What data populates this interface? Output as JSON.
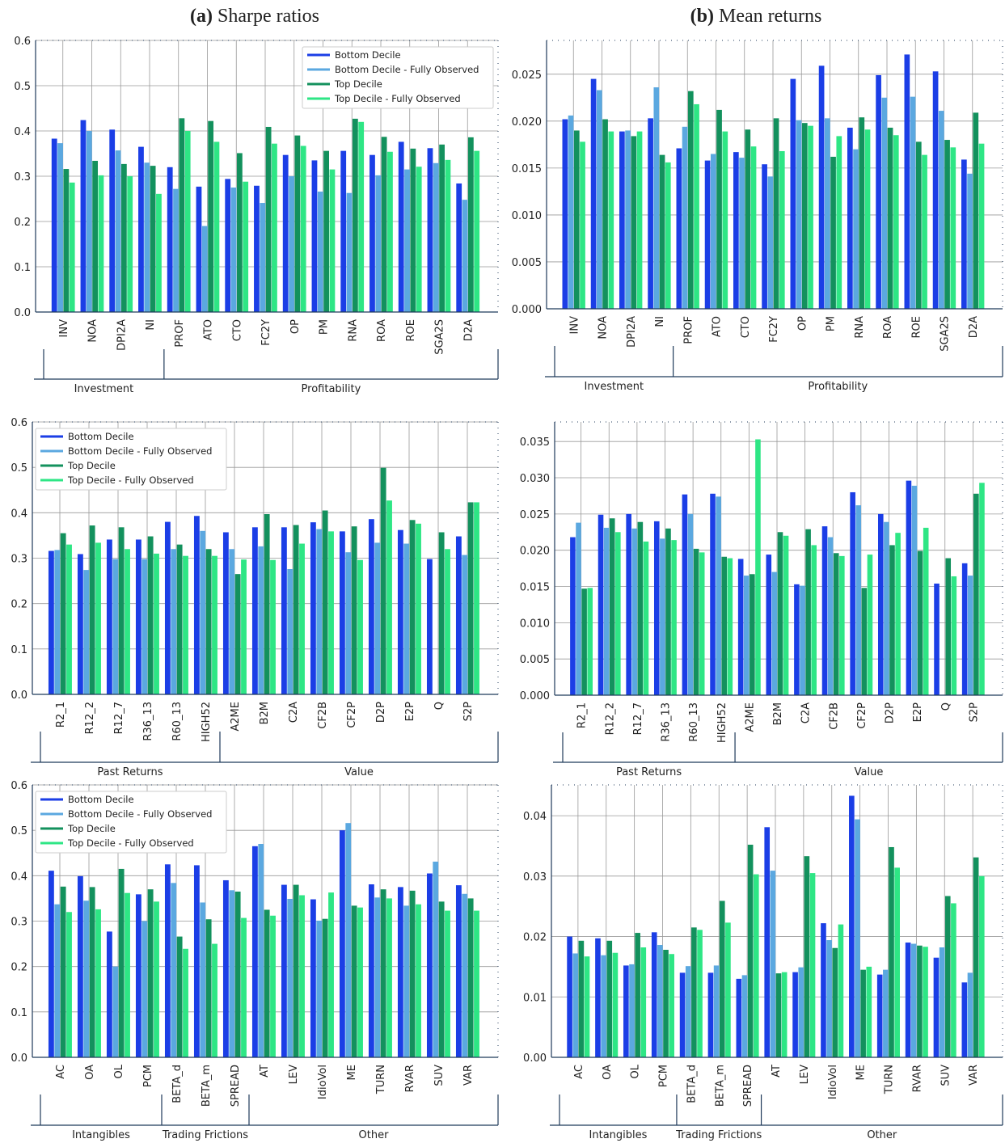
{
  "column_titles": [
    {
      "label": "(a)",
      "text": "Sharpe ratios"
    },
    {
      "label": "(b)",
      "text": "Mean returns"
    }
  ],
  "chart_data": [
    {
      "type": "bar",
      "legend": "upper right",
      "ylim": [
        0,
        0.6
      ],
      "yticks": [
        {
          "value": 0,
          "label": "0.0"
        },
        0.1,
        0.2,
        0.3,
        0.4,
        0.5,
        0.6
      ],
      "groups": [
        {
          "name": "Investment",
          "categories": [
            "INV",
            "NOA",
            "DPI2A",
            "NI"
          ]
        },
        {
          "name": "Profitability",
          "categories": [
            "PROF",
            "ATO",
            "CTO",
            "FC2Y",
            "OP",
            "PM",
            "RNA",
            "ROA",
            "ROE",
            "SGA2S",
            "D2A"
          ]
        }
      ],
      "series": [
        {
          "name": "Bottom Decile",
          "color": "#1b3ee6",
          "values": [
            0.383,
            0.424,
            0.403,
            0.365,
            0.32,
            0.277,
            0.294,
            0.279,
            0.347,
            0.335,
            0.356,
            0.347,
            0.376,
            0.362,
            0.284
          ]
        },
        {
          "name": "Bottom Decile - Fully Observed",
          "color": "#5ba8e0",
          "values": [
            0.373,
            0.4,
            0.357,
            0.33,
            0.272,
            0.19,
            0.275,
            0.241,
            0.3,
            0.266,
            0.263,
            0.302,
            0.315,
            0.329,
            0.248
          ]
        },
        {
          "name": "Top Decile",
          "color": "#13915d",
          "values": [
            0.316,
            0.334,
            0.327,
            0.323,
            0.428,
            0.422,
            0.351,
            0.409,
            0.39,
            0.356,
            0.427,
            0.387,
            0.361,
            0.37,
            0.386
          ]
        },
        {
          "name": "Top Decile - Fully Observed",
          "color": "#2ee685",
          "values": [
            0.286,
            0.302,
            0.3,
            0.261,
            0.4,
            0.376,
            0.288,
            0.372,
            0.367,
            0.315,
            0.42,
            0.354,
            0.321,
            0.336,
            0.356
          ]
        }
      ]
    },
    {
      "type": "bar",
      "ylim": [
        0,
        0.0286
      ],
      "yticks": [
        {
          "value": 0,
          "label": "0.000"
        },
        {
          "value": 0.005,
          "label": "0.005"
        },
        {
          "value": 0.01,
          "label": "0.010"
        },
        {
          "value": 0.015,
          "label": "0.015"
        },
        {
          "value": 0.02,
          "label": "0.020"
        },
        {
          "value": 0.025,
          "label": "0.025"
        }
      ],
      "groups": [
        {
          "name": "Investment",
          "categories": [
            "INV",
            "NOA",
            "DPI2A",
            "NI"
          ]
        },
        {
          "name": "Profitability",
          "categories": [
            "PROF",
            "ATO",
            "CTO",
            "FC2Y",
            "OP",
            "PM",
            "RNA",
            "ROA",
            "ROE",
            "SGA2S",
            "D2A"
          ]
        }
      ],
      "series": [
        {
          "color": "#1b3ee6",
          "values": [
            0.0202,
            0.0245,
            0.0189,
            0.0203,
            0.0171,
            0.0158,
            0.0167,
            0.0154,
            0.0245,
            0.0259,
            0.0193,
            0.0249,
            0.0271,
            0.0253,
            0.0159
          ]
        },
        {
          "color": "#5ba8e0",
          "values": [
            0.0206,
            0.0233,
            0.019,
            0.0236,
            0.0194,
            0.0165,
            0.0161,
            0.0141,
            0.0201,
            0.0203,
            0.017,
            0.0225,
            0.0226,
            0.0211,
            0.0144
          ]
        },
        {
          "color": "#13915d",
          "values": [
            0.019,
            0.0202,
            0.0184,
            0.0164,
            0.0232,
            0.0212,
            0.0191,
            0.0203,
            0.0198,
            0.0162,
            0.0204,
            0.0193,
            0.0178,
            0.018,
            0.0209
          ]
        },
        {
          "color": "#2ee685",
          "values": [
            0.0178,
            0.0189,
            0.0189,
            0.0156,
            0.0218,
            0.0189,
            0.0173,
            0.0168,
            0.0195,
            0.0184,
            0.0191,
            0.0185,
            0.0164,
            0.0172,
            0.0176
          ]
        }
      ]
    },
    {
      "type": "bar",
      "legend": "upper left",
      "ylim": [
        0,
        0.6
      ],
      "yticks": [
        {
          "value": 0,
          "label": "0.0"
        },
        0.1,
        0.2,
        0.3,
        0.4,
        0.5,
        0.6
      ],
      "groups": [
        {
          "name": "Past Returns",
          "categories": [
            "R2_1",
            "R12_2",
            "R12_7",
            "R36_13",
            "R60_13",
            "HIGH52"
          ]
        },
        {
          "name": "Value",
          "categories": [
            "A2ME",
            "B2M",
            "C2A",
            "CF2B",
            "CF2P",
            "D2P",
            "E2P",
            "Q",
            "S2P"
          ]
        }
      ],
      "series": [
        {
          "name": "Bottom Decile",
          "color": "#1b3ee6",
          "values": [
            0.316,
            0.309,
            0.341,
            0.341,
            0.38,
            0.393,
            0.357,
            0.368,
            0.368,
            0.379,
            0.359,
            0.386,
            0.362,
            0.298,
            0.348
          ]
        },
        {
          "name": "Bottom Decile - Fully Observed",
          "color": "#5ba8e0",
          "values": [
            0.318,
            0.274,
            0.298,
            0.298,
            0.32,
            0.36,
            0.32,
            0.326,
            0.276,
            0.364,
            0.313,
            0.334,
            0.332,
            null,
            0.307
          ]
        },
        {
          "name": "Top Decile",
          "color": "#13915d",
          "values": [
            0.355,
            0.372,
            0.368,
            0.348,
            0.33,
            0.32,
            0.265,
            0.397,
            0.373,
            0.405,
            0.37,
            0.499,
            0.384,
            0.357,
            0.423
          ]
        },
        {
          "name": "Top Decile - Fully Observed",
          "color": "#2ee685",
          "values": [
            0.33,
            0.334,
            0.32,
            0.31,
            0.305,
            0.305,
            0.297,
            0.296,
            0.332,
            0.359,
            0.296,
            0.427,
            0.376,
            0.32,
            0.423
          ]
        }
      ]
    },
    {
      "type": "bar",
      "ylim": [
        0,
        0.0377
      ],
      "yticks": [
        {
          "value": 0,
          "label": "0.000"
        },
        {
          "value": 0.005,
          "label": "0.005"
        },
        {
          "value": 0.01,
          "label": "0.010"
        },
        {
          "value": 0.015,
          "label": "0.015"
        },
        {
          "value": 0.02,
          "label": "0.020"
        },
        {
          "value": 0.025,
          "label": "0.025"
        },
        {
          "value": 0.03,
          "label": "0.030"
        },
        {
          "value": 0.035,
          "label": "0.035"
        }
      ],
      "groups": [
        {
          "name": "Past Returns",
          "categories": [
            "R2_1",
            "R12_2",
            "R12_7",
            "R36_13",
            "R60_13",
            "HIGH52"
          ]
        },
        {
          "name": "Value",
          "categories": [
            "A2ME",
            "B2M",
            "C2A",
            "CF2B",
            "CF2P",
            "D2P",
            "E2P",
            "Q",
            "S2P"
          ]
        }
      ],
      "series": [
        {
          "color": "#1b3ee6",
          "values": [
            0.0218,
            0.0249,
            0.025,
            0.024,
            0.0277,
            0.0278,
            0.0188,
            0.0194,
            0.0153,
            0.0233,
            0.028,
            0.025,
            0.0296,
            0.0154,
            0.0182
          ]
        },
        {
          "color": "#5ba8e0",
          "values": [
            0.0238,
            0.0231,
            0.023,
            0.0216,
            0.025,
            0.0274,
            0.0165,
            0.017,
            0.0151,
            0.0218,
            0.0262,
            0.0239,
            0.0289,
            null,
            0.0165
          ]
        },
        {
          "color": "#13915d",
          "values": [
            0.0147,
            0.0244,
            0.0239,
            0.023,
            0.0202,
            0.0191,
            0.0167,
            0.0225,
            0.0229,
            0.0196,
            0.0148,
            0.0207,
            0.0199,
            0.0189,
            0.0278
          ]
        },
        {
          "color": "#2ee685",
          "values": [
            0.0148,
            0.0225,
            0.0212,
            0.0214,
            0.0197,
            0.0189,
            0.0353,
            0.022,
            0.0207,
            0.0192,
            0.0194,
            0.0224,
            0.0231,
            0.0164,
            0.0293
          ]
        }
      ]
    },
    {
      "type": "bar",
      "legend": "upper left",
      "ylim": [
        0,
        0.6
      ],
      "yticks": [
        {
          "value": 0,
          "label": "0.0"
        },
        0.1,
        0.2,
        0.3,
        0.4,
        0.5,
        0.6
      ],
      "groups": [
        {
          "name": "Intangibles",
          "categories": [
            "AC",
            "OA",
            "OL",
            "PCM"
          ]
        },
        {
          "name": "Trading Frictions",
          "categories": [
            "BETA_d",
            "BETA_m",
            "SPREAD"
          ]
        },
        {
          "name": "Other",
          "categories": [
            "AT",
            "LEV",
            "IdioVol",
            "ME",
            "TURN",
            "RVAR",
            "SUV",
            "VAR"
          ]
        }
      ],
      "series": [
        {
          "name": "Bottom Decile",
          "color": "#1b3ee6",
          "values": [
            0.411,
            0.399,
            0.277,
            0.359,
            0.425,
            0.423,
            0.39,
            0.465,
            0.38,
            0.348,
            0.5,
            0.381,
            0.375,
            0.405,
            0.379
          ]
        },
        {
          "name": "Bottom Decile - Fully Observed",
          "color": "#5ba8e0",
          "values": [
            0.337,
            0.345,
            0.2,
            0.3,
            0.384,
            0.341,
            0.368,
            0.47,
            0.349,
            0.301,
            0.516,
            0.352,
            0.334,
            0.431,
            0.36
          ]
        },
        {
          "name": "Top Decile",
          "color": "#13915d",
          "values": [
            0.376,
            0.375,
            0.415,
            0.37,
            0.266,
            0.304,
            0.365,
            0.325,
            0.38,
            0.305,
            0.334,
            0.37,
            0.367,
            0.343,
            0.35
          ]
        },
        {
          "name": "Top Decile - Fully Observed",
          "color": "#2ee685",
          "values": [
            0.32,
            0.326,
            0.362,
            0.343,
            0.239,
            0.25,
            0.307,
            0.312,
            0.357,
            0.363,
            0.33,
            0.35,
            0.337,
            0.323,
            0.323
          ]
        }
      ]
    },
    {
      "type": "bar",
      "ylim": [
        0,
        0.0451
      ],
      "yticks": [
        {
          "value": 0,
          "label": "0.00"
        },
        0.01,
        0.02,
        0.03,
        0.04
      ],
      "groups": [
        {
          "name": "Intangibles",
          "categories": [
            "AC",
            "OA",
            "OL",
            "PCM"
          ]
        },
        {
          "name": "Trading Frictions",
          "categories": [
            "BETA_d",
            "BETA_m",
            "SPREAD"
          ]
        },
        {
          "name": "Other",
          "categories": [
            "AT",
            "LEV",
            "IdioVol",
            "ME",
            "TURN",
            "RVAR",
            "SUV",
            "VAR"
          ]
        }
      ],
      "series": [
        {
          "color": "#1b3ee6",
          "values": [
            0.02,
            0.0197,
            0.0152,
            0.0207,
            0.014,
            0.014,
            0.013,
            0.0381,
            0.0141,
            0.0222,
            0.0433,
            0.0137,
            0.019,
            0.0165,
            0.0124
          ]
        },
        {
          "color": "#5ba8e0",
          "values": [
            0.0172,
            0.0169,
            0.0154,
            0.0186,
            0.0151,
            0.0152,
            0.0136,
            0.0309,
            0.0149,
            0.0194,
            0.0394,
            0.0145,
            0.0188,
            0.0182,
            0.014
          ]
        },
        {
          "color": "#13915d",
          "values": [
            0.0193,
            0.0193,
            0.0206,
            0.0178,
            0.0215,
            0.0259,
            0.0352,
            0.0139,
            0.0333,
            0.0181,
            0.0145,
            0.0348,
            0.0185,
            0.0267,
            0.0331
          ]
        },
        {
          "color": "#2ee685",
          "values": [
            0.0167,
            0.0173,
            0.0182,
            0.0171,
            0.0211,
            0.0223,
            0.0303,
            0.0141,
            0.0305,
            0.022,
            0.015,
            0.0314,
            0.0183,
            0.0255,
            0.03
          ]
        }
      ]
    }
  ]
}
